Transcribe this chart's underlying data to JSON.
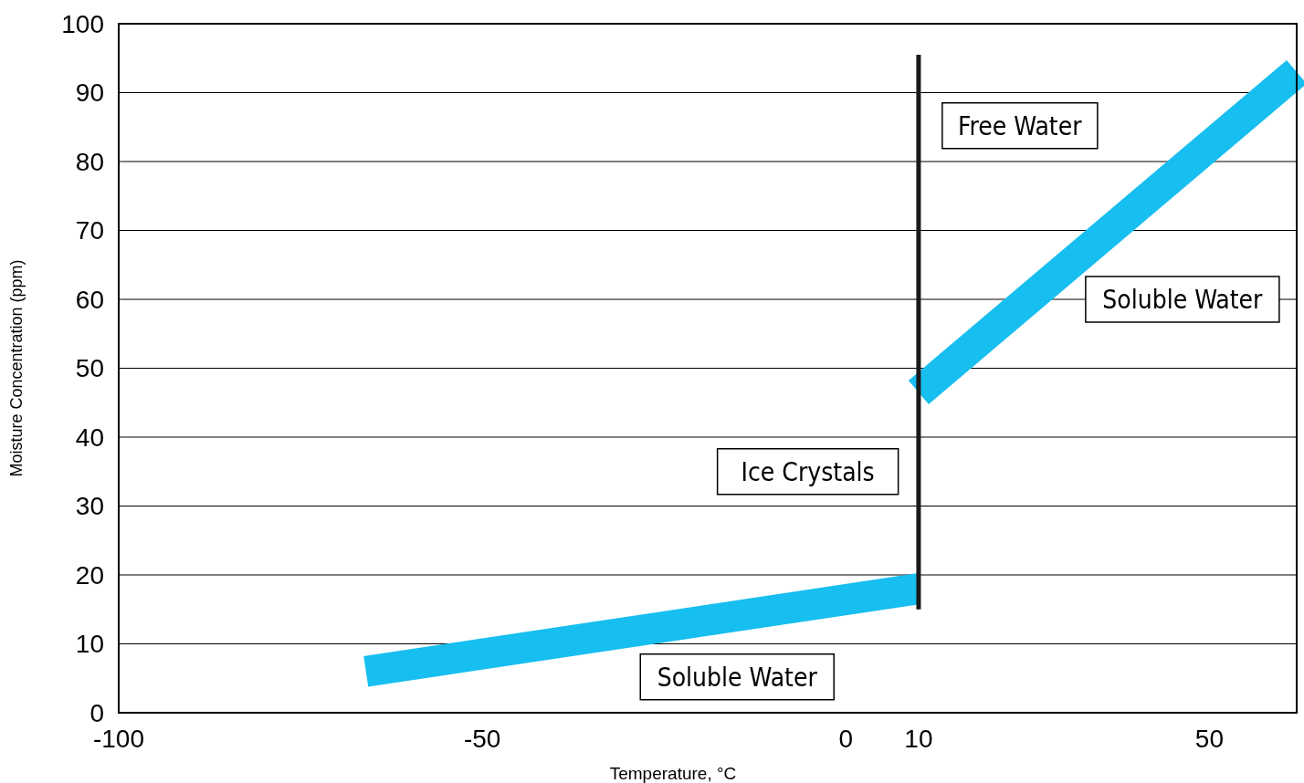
{
  "chart_data": {
    "type": "line",
    "xlabel": "Temperature, °C",
    "ylabel": "Moisture Concentration (ppm)",
    "xlim": [
      -100,
      62
    ],
    "xticks": [
      -100,
      -50,
      0,
      10,
      50
    ],
    "ylim": [
      0,
      100
    ],
    "yticks": [
      0,
      10,
      20,
      30,
      40,
      50,
      60,
      70,
      80,
      90,
      100
    ],
    "grid": "y",
    "series": [
      {
        "color": "#17bef0",
        "x": [
          -66,
          10
        ],
        "values": [
          6,
          18
        ]
      },
      {
        "color": "#17bef0",
        "x": [
          10,
          62
        ],
        "values": [
          46.5,
          93
        ]
      },
      {
        "color": "#1a1a1a",
        "x": [
          10,
          10
        ],
        "values": [
          15,
          95.5
        ]
      }
    ],
    "annotations": [
      "Free Water",
      "Soluble Water",
      "Ice Crystals",
      "Soluble Water"
    ]
  }
}
